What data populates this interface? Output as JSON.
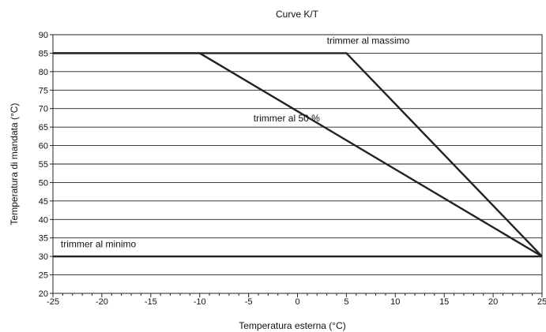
{
  "chart_data": {
    "type": "line",
    "title": "Curve K/T",
    "xlabel": "Temperatura esterna (°C)",
    "ylabel": "Temperatura di mandata (°C)",
    "xlim": [
      -25,
      25
    ],
    "ylim": [
      20,
      90
    ],
    "x_ticks": [
      -25,
      -20,
      -15,
      -10,
      -5,
      0,
      5,
      10,
      15,
      20,
      25
    ],
    "y_ticks": [
      20,
      25,
      30,
      35,
      40,
      45,
      50,
      55,
      60,
      65,
      70,
      75,
      80,
      85,
      90
    ],
    "grid": "horizontal",
    "series": [
      {
        "name": "trimmer al massimo",
        "points": [
          [
            -25,
            85
          ],
          [
            5,
            85
          ],
          [
            25,
            30
          ]
        ]
      },
      {
        "name": "trimmer al 50 %",
        "points": [
          [
            -25,
            85
          ],
          [
            -10,
            85
          ],
          [
            25,
            30
          ]
        ]
      },
      {
        "name": "trimmer al minimo",
        "points": [
          [
            -25,
            30
          ],
          [
            25,
            30
          ]
        ]
      }
    ],
    "annotations": [
      {
        "text": "trimmer al massimo",
        "x": 3.0,
        "y": 87.5
      },
      {
        "text": "trimmer al 50 %",
        "x": -4.5,
        "y": 66.5
      },
      {
        "text": "trimmer al minimo",
        "x": -24.2,
        "y": 32.5
      }
    ]
  }
}
